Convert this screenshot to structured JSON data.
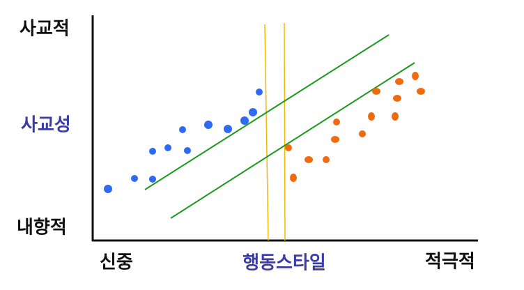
{
  "labels": {
    "y_top": "사교적",
    "y_middle": "사교성",
    "y_bottom": "내향적",
    "x_left": "신중",
    "x_middle": "행동스타일",
    "x_right": "적극적"
  }
}
